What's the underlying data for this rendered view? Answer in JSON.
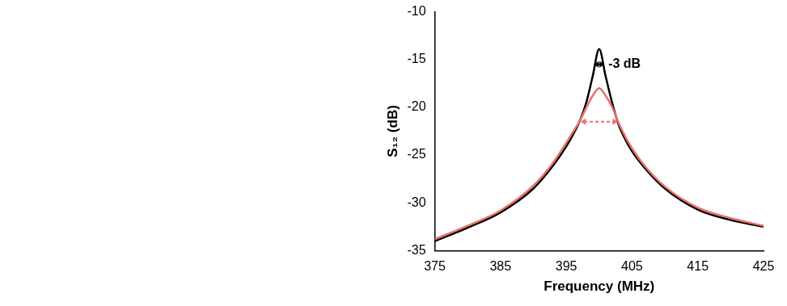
{
  "chart_data": {
    "type": "line",
    "x_label": "Frequency (MHz)",
    "y_label": "S₁₂ (dB)",
    "x": [
      375,
      380,
      385,
      390,
      393,
      395,
      396,
      397,
      398,
      399,
      400,
      401,
      402,
      403,
      404,
      405,
      407,
      410,
      415,
      420,
      425
    ],
    "series": [
      {
        "color": "#e8706a",
        "line_style": "solid",
        "values": [
          -33.8,
          -32.4,
          -30.8,
          -28.2,
          -25.8,
          -23.7,
          -22.6,
          -21.5,
          -20.1,
          -18.8,
          -18.0,
          -18.8,
          -20.0,
          -21.7,
          -23.1,
          -24.3,
          -26.2,
          -28.3,
          -30.5,
          -31.6,
          -32.4
        ]
      },
      {
        "color": "#000000",
        "line_style": "solid",
        "values": [
          -34.0,
          -32.6,
          -31.0,
          -28.5,
          -26.1,
          -24.1,
          -22.9,
          -21.5,
          -19.6,
          -16.8,
          -13.9,
          -16.8,
          -19.6,
          -21.9,
          -23.4,
          -24.6,
          -26.4,
          -28.5,
          -30.7,
          -31.8,
          -32.5
        ]
      }
    ],
    "bandwidth_markers": [
      {
        "x_start": 399.2,
        "x_end": 400.8,
        "y": -15.5,
        "color": "#000000",
        "line_style": "dashed"
      },
      {
        "x_start": 397.2,
        "x_end": 402.8,
        "y": -21.5,
        "color": "#e8706a",
        "line_style": "dashed"
      }
    ],
    "annotations": [
      {
        "text": "-3 dB",
        "x": 401.4,
        "y": -15.5
      }
    ],
    "xlim": [
      375,
      425
    ],
    "xticks": [
      375,
      385,
      395,
      405,
      415,
      425
    ],
    "ylim": [
      -35,
      -10
    ],
    "yticks": [
      -35,
      -30,
      -25,
      -20,
      -15,
      -10
    ],
    "grid": false
  }
}
